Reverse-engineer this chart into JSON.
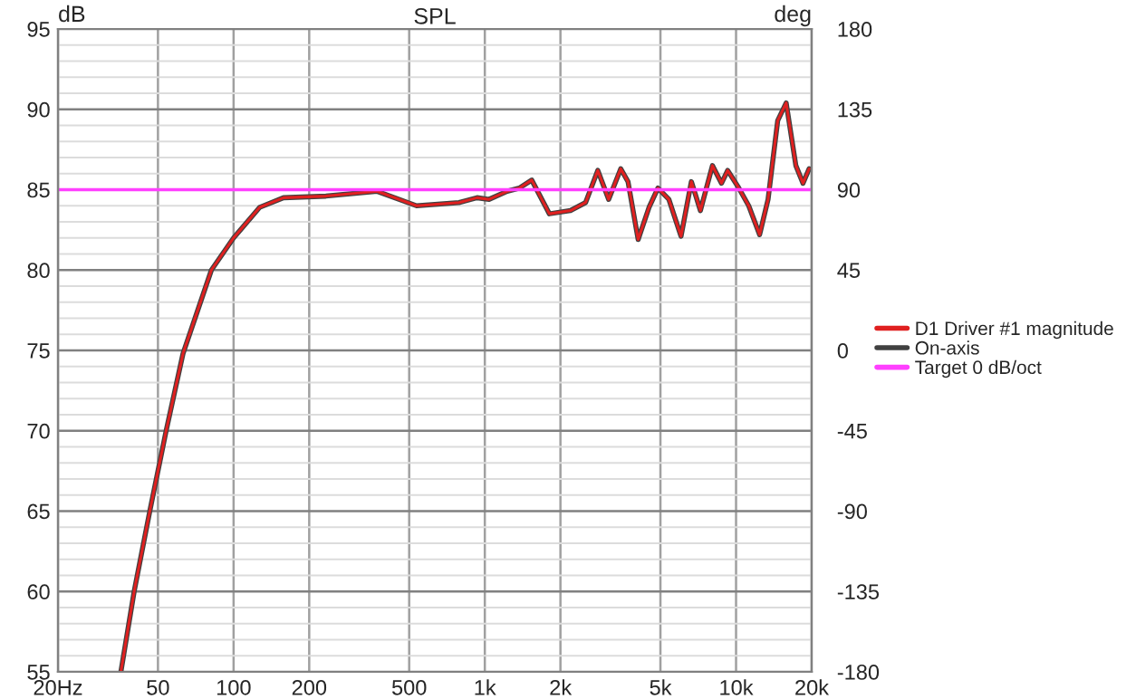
{
  "chart_data": {
    "type": "line",
    "title": "SPL",
    "ylabel": "dB",
    "y2label": "deg",
    "series": [
      {
        "name": "On-axis",
        "color": "#404040",
        "x": [
          35.6,
          40.2,
          46.4,
          53.9,
          62.9,
          81.6,
          100,
          127,
          158,
          233,
          373,
          535,
          789,
          931,
          1040,
          1227,
          1371,
          1537,
          1807,
          2193,
          2518,
          2816,
          3111,
          3475,
          3715,
          4077,
          4504,
          4887,
          5402,
          6039,
          6640,
          7213,
          8054,
          8752,
          9260,
          10170,
          11230,
          12410,
          13410,
          14650,
          15830,
          17300,
          18470,
          19540
        ],
        "values": [
          55,
          60,
          65,
          70,
          74.8,
          80,
          82,
          83.9,
          84.5,
          84.6,
          84.9,
          84.0,
          84.2,
          84.5,
          84.4,
          84.9,
          85.1,
          85.6,
          83.5,
          83.7,
          84.2,
          86.2,
          84.4,
          86.3,
          85.5,
          81.9,
          83.9,
          85.1,
          84.4,
          82.1,
          85.5,
          83.7,
          86.5,
          85.4,
          86.2,
          85.2,
          84.0,
          82.2,
          84.4,
          89.3,
          90.4,
          86.5,
          85.4,
          86.3
        ]
      },
      {
        "name": "D1 Driver #1 magnitude",
        "color": "#e02020",
        "x": [
          35.6,
          40.2,
          46.4,
          53.9,
          62.9,
          81.6,
          100,
          127,
          158,
          233,
          373,
          535,
          789,
          931,
          1040,
          1227,
          1371,
          1537,
          1807,
          2193,
          2518,
          2816,
          3111,
          3475,
          3715,
          4077,
          4504,
          4887,
          5402,
          6039,
          6640,
          7213,
          8054,
          8752,
          9260,
          10170,
          11230,
          12410,
          13410,
          14650,
          15830,
          17300,
          18470,
          19540
        ],
        "values": [
          55,
          60,
          65,
          70,
          74.8,
          80,
          82,
          83.9,
          84.5,
          84.6,
          84.9,
          84.0,
          84.2,
          84.5,
          84.4,
          84.9,
          85.1,
          85.6,
          83.5,
          83.7,
          84.2,
          86.2,
          84.4,
          86.3,
          85.5,
          81.9,
          83.9,
          85.1,
          84.4,
          82.1,
          85.5,
          83.7,
          86.5,
          85.4,
          86.2,
          85.2,
          84.0,
          82.2,
          84.4,
          89.3,
          90.4,
          86.5,
          85.4,
          86.3
        ]
      },
      {
        "name": "Target 0 dB/oct",
        "color": "#ff40ff",
        "x": [
          20,
          20000
        ],
        "values": [
          85,
          85
        ]
      }
    ],
    "log": "x",
    "xlim": [
      20,
      20000
    ],
    "xticks": [
      {
        "value": 20,
        "label": "20Hz"
      },
      50,
      100,
      200,
      500,
      {
        "value": 1000,
        "label": "1k"
      },
      {
        "value": 2000,
        "label": "2k"
      },
      {
        "value": 5000,
        "label": "5k"
      },
      {
        "value": 10000,
        "label": "10k"
      },
      {
        "value": 20000,
        "label": "20k"
      }
    ],
    "ylim": [
      55,
      95
    ],
    "yticks": [
      55,
      60,
      65,
      70,
      75,
      80,
      85,
      90,
      95
    ],
    "y2lim": [
      -180,
      180
    ],
    "y2ticks": [
      -180,
      -135,
      -90,
      -45,
      0,
      45,
      90,
      135,
      180
    ],
    "grid": true,
    "legend": "right"
  }
}
